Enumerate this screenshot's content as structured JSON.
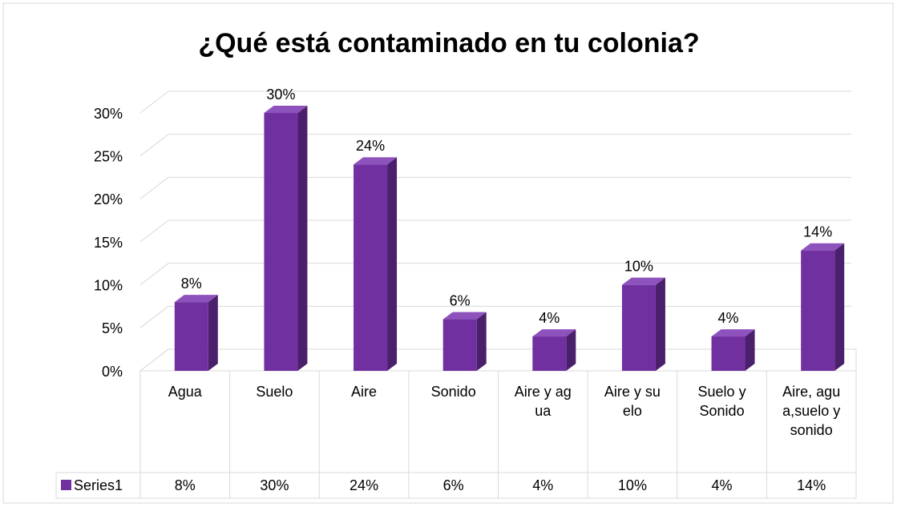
{
  "chart_data": {
    "type": "bar3d",
    "title": "¿Qué está contaminado en tu colonia?",
    "categories": [
      "Agua",
      "Suelo",
      "Aire",
      "Sonido",
      "Aire y agua",
      "Aire y suelo",
      "Suelo y Sonido",
      "Aire, agua,suelo y sonido"
    ],
    "series": [
      {
        "name": "Series1",
        "color": "#7030a0",
        "values": [
          8,
          30,
          24,
          6,
          4,
          10,
          4,
          14
        ],
        "value_labels": [
          "8%",
          "30%",
          "24%",
          "6%",
          "4%",
          "10%",
          "4%",
          "14%"
        ]
      }
    ],
    "ylim": [
      0,
      30
    ],
    "yticks": [
      {
        "value": 0,
        "label": "0%"
      },
      {
        "value": 5,
        "label": "5%"
      },
      {
        "value": 10,
        "label": "10%"
      },
      {
        "value": 15,
        "label": "15%"
      },
      {
        "value": 20,
        "label": "20%"
      },
      {
        "value": 25,
        "label": "25%"
      },
      {
        "value": 30,
        "label": "30%"
      }
    ],
    "grid": true,
    "data_table": true
  }
}
